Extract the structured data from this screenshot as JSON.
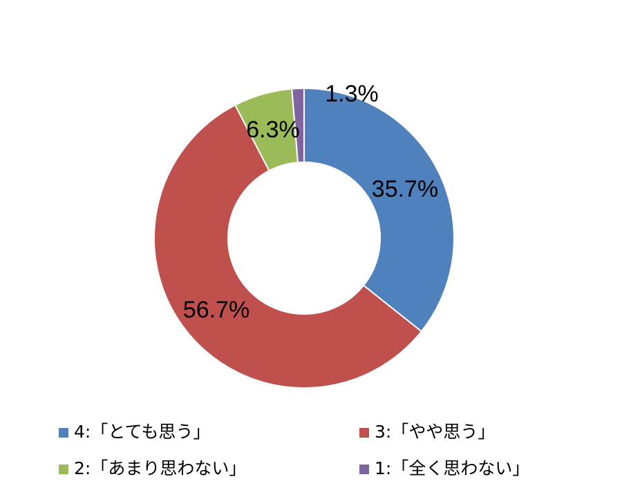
{
  "chart_data": {
    "type": "donut",
    "categories": [
      "4:「とても思う」",
      "3:「やや思う」",
      "2:「あまり思わない」",
      "1:「全く思わない」"
    ],
    "values": [
      35.7,
      56.7,
      6.3,
      1.3
    ],
    "value_labels": [
      "35.7%",
      "56.7%",
      "6.3%",
      "1.3%"
    ],
    "colors": [
      "#4f81bd",
      "#c0504d",
      "#9bbb59",
      "#8064a2"
    ]
  }
}
